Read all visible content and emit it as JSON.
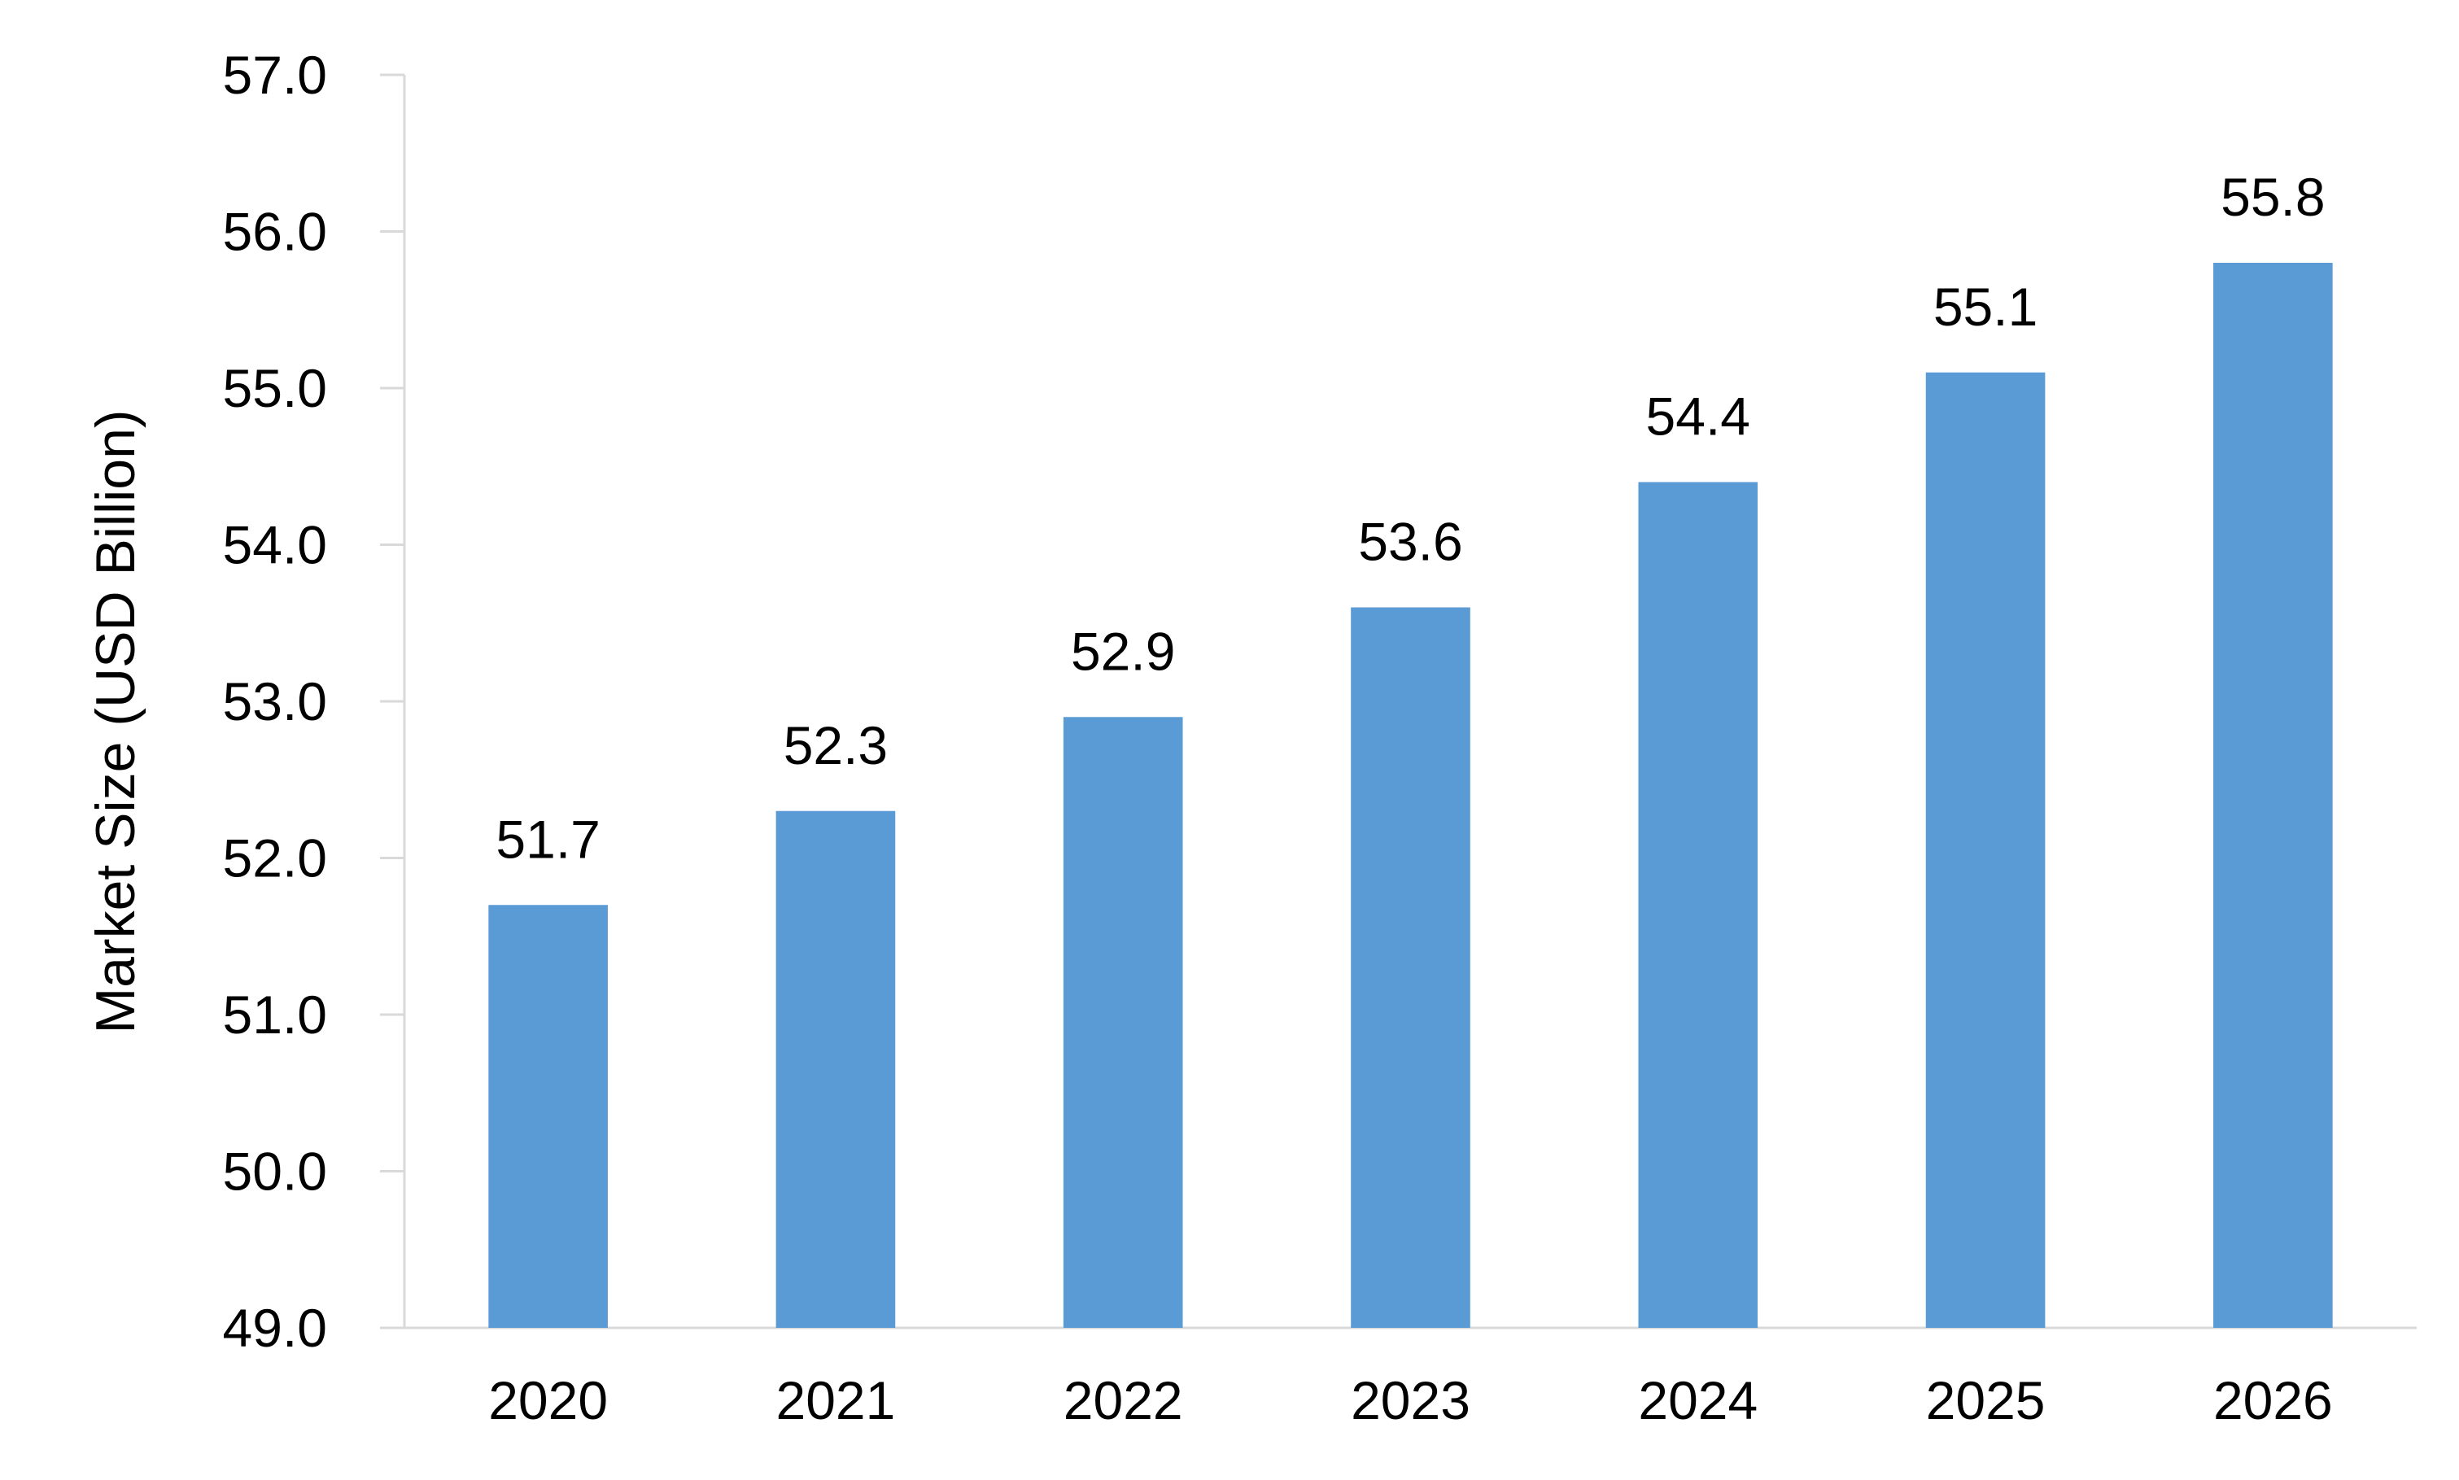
{
  "chart_data": {
    "type": "bar",
    "title": "",
    "xlabel": "",
    "ylabel": "Market Size (USD Billion)",
    "categories": [
      "2020",
      "2021",
      "2022",
      "2023",
      "2024",
      "2025",
      "2026"
    ],
    "values": [
      51.7,
      52.3,
      52.9,
      53.6,
      54.4,
      55.1,
      55.8
    ],
    "value_labels": [
      "51.7",
      "52.3",
      "52.9",
      "53.6",
      "54.4",
      "55.1",
      "55.8"
    ],
    "ylim": [
      49.0,
      57.0
    ],
    "y_ticks": [
      "49.0",
      "50.0",
      "51.0",
      "52.0",
      "53.0",
      "54.0",
      "55.0",
      "56.0",
      "57.0"
    ],
    "grid": false,
    "legend": "none",
    "bar_color": "#5B9BD5",
    "axis_color": "#D9D9D9"
  }
}
